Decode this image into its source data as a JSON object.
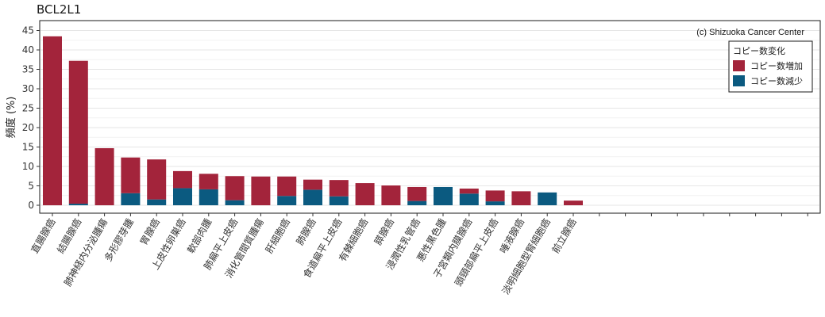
{
  "chart_data": {
    "type": "bar",
    "title": "BCL2L1",
    "ylabel": "頻度 (%)",
    "xlabel": "",
    "ylim": [
      0,
      47
    ],
    "yticks": [
      0,
      5,
      10,
      15,
      20,
      25,
      30,
      35,
      40,
      45
    ],
    "grid": true,
    "legend_position": "top-right",
    "credit": "(c) Shizuoka Cancer Center",
    "legend": {
      "title": "コピー数変化",
      "items": [
        "コピー数増加",
        "コピー数減少"
      ]
    },
    "colors": {
      "gain": "#a3243b",
      "loss": "#0b5a80"
    },
    "categories": [
      "直腸腺癌",
      "結腸腺癌",
      "肺神経内分泌腫瘍",
      "多形膠芽腫",
      "胃腺癌",
      "上皮性卵巣癌",
      "軟部肉腫",
      "肺扁平上皮癌",
      "消化管間質腫瘍",
      "肝細胞癌",
      "肺腺癌",
      "食道扁平上皮癌",
      "有棘細胞癌",
      "膵腺癌",
      "浸潤性乳管癌",
      "悪性黒色腫",
      "子宮類内膜腺癌",
      "頭頸部扁平上皮癌",
      "唾液腺癌",
      "淡明細胞型腎細胞癌",
      "前立腺癌",
      "",
      "",
      "",
      "",
      "",
      "",
      "",
      "",
      "",
      ""
    ],
    "series": [
      {
        "name": "コピー数増加",
        "values": [
          43.5,
          36.8,
          14.7,
          9.2,
          10.3,
          4.4,
          4.0,
          6.2,
          7.4,
          5.0,
          2.6,
          4.2,
          5.7,
          5.1,
          3.6,
          0.0,
          1.3,
          2.8,
          3.6,
          0.0,
          1.2,
          0,
          0,
          0,
          0,
          0,
          0,
          0,
          0,
          0,
          0
        ]
      },
      {
        "name": "コピー数減少",
        "values": [
          0.0,
          0.4,
          0.0,
          3.1,
          1.5,
          4.4,
          4.1,
          1.3,
          0.0,
          2.4,
          4.0,
          2.3,
          0.0,
          0.0,
          1.1,
          4.7,
          3.0,
          1.0,
          0.0,
          3.3,
          0.0,
          0,
          0,
          0,
          0,
          0,
          0,
          0,
          0,
          0,
          0
        ]
      }
    ]
  }
}
